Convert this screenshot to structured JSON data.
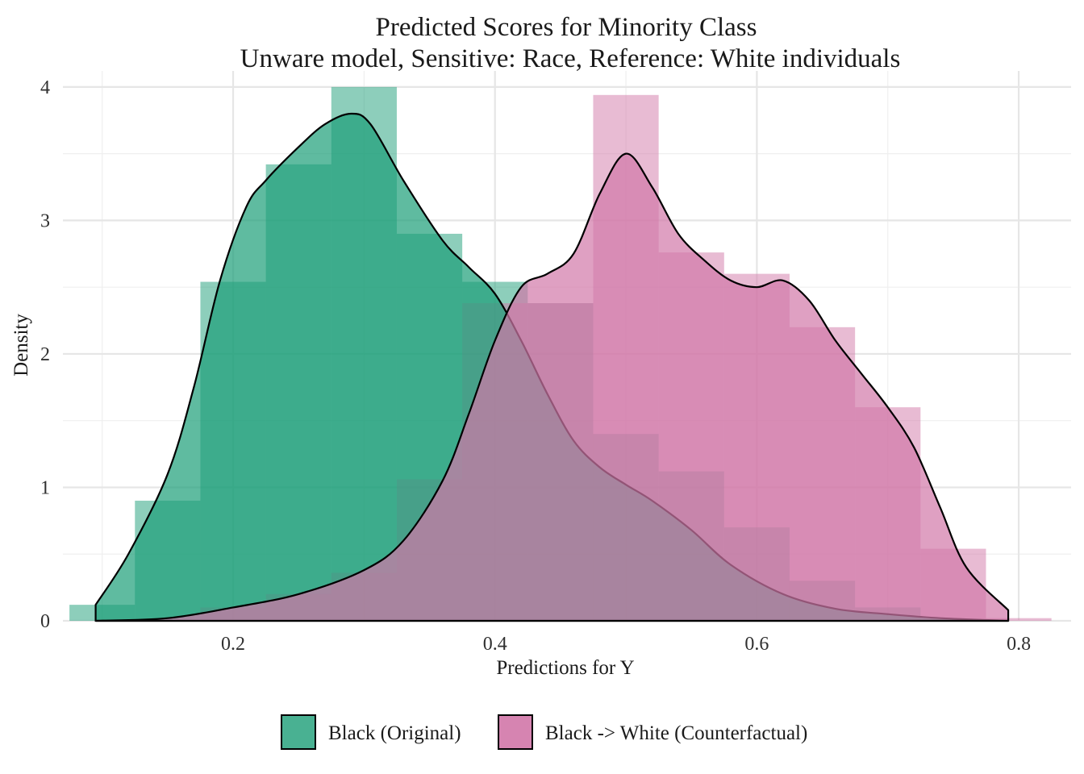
{
  "chart_data": {
    "type": "histogram",
    "title": "Predicted Scores for Minority Class",
    "subtitle": "Unware model, Sensitive: Race, Reference: White individuals",
    "xlabel": "Predictions for Y",
    "ylabel": "Density",
    "xlim": [
      0.07,
      0.84
    ],
    "ylim": [
      0,
      4.12
    ],
    "x_ticks": [
      0.2,
      0.4,
      0.6,
      0.8
    ],
    "x_tick_labels": [
      "0.2",
      "0.4",
      "0.6",
      "0.8"
    ],
    "y_ticks": [
      0,
      1,
      2,
      3,
      4
    ],
    "y_tick_labels": [
      "0",
      "1",
      "2",
      "3",
      "4"
    ],
    "grid": true,
    "legend_position": "bottom",
    "bin_edges": [
      0.075,
      0.125,
      0.175,
      0.225,
      0.275,
      0.325,
      0.375,
      0.425,
      0.475,
      0.525,
      0.575,
      0.625,
      0.675,
      0.725,
      0.775,
      0.825
    ],
    "series": [
      {
        "name": "Black (Original)",
        "color": "#1b9e77",
        "hist_density": [
          0.12,
          0.9,
          2.54,
          3.42,
          4.0,
          2.9,
          2.54,
          2.38,
          1.4,
          1.12,
          0.7,
          0.3,
          0.1,
          0.0,
          0.0
        ],
        "kde": {
          "x": [
            0.095,
            0.12,
            0.15,
            0.17,
            0.19,
            0.21,
            0.225,
            0.25,
            0.27,
            0.29,
            0.305,
            0.33,
            0.36,
            0.38,
            0.4,
            0.42,
            0.44,
            0.46,
            0.48,
            0.5,
            0.52,
            0.55,
            0.58,
            0.62,
            0.66,
            0.7,
            0.74,
            0.792
          ],
          "y": [
            0.12,
            0.5,
            1.1,
            1.75,
            2.55,
            3.1,
            3.3,
            3.55,
            3.72,
            3.8,
            3.72,
            3.3,
            2.85,
            2.65,
            2.45,
            2.1,
            1.7,
            1.35,
            1.15,
            1.02,
            0.9,
            0.68,
            0.42,
            0.2,
            0.09,
            0.05,
            0.02,
            0.0
          ]
        }
      },
      {
        "name": "Black -> White (Counterfactual)",
        "color": "#d277a8",
        "hist_density": [
          0.0,
          0.0,
          0.1,
          0.2,
          0.36,
          1.06,
          2.38,
          2.38,
          3.94,
          2.76,
          2.6,
          2.2,
          1.6,
          0.54,
          0.02
        ],
        "kde": {
          "x": [
            0.095,
            0.15,
            0.2,
            0.25,
            0.3,
            0.33,
            0.36,
            0.38,
            0.4,
            0.42,
            0.44,
            0.46,
            0.48,
            0.5,
            0.52,
            0.54,
            0.56,
            0.58,
            0.6,
            0.62,
            0.64,
            0.66,
            0.68,
            0.7,
            0.72,
            0.74,
            0.76,
            0.792
          ],
          "y": [
            0.0,
            0.02,
            0.1,
            0.2,
            0.38,
            0.6,
            1.05,
            1.55,
            2.1,
            2.5,
            2.6,
            2.75,
            3.2,
            3.5,
            3.25,
            2.9,
            2.7,
            2.55,
            2.5,
            2.55,
            2.4,
            2.1,
            1.85,
            1.6,
            1.3,
            0.85,
            0.4,
            0.08
          ]
        }
      }
    ]
  }
}
